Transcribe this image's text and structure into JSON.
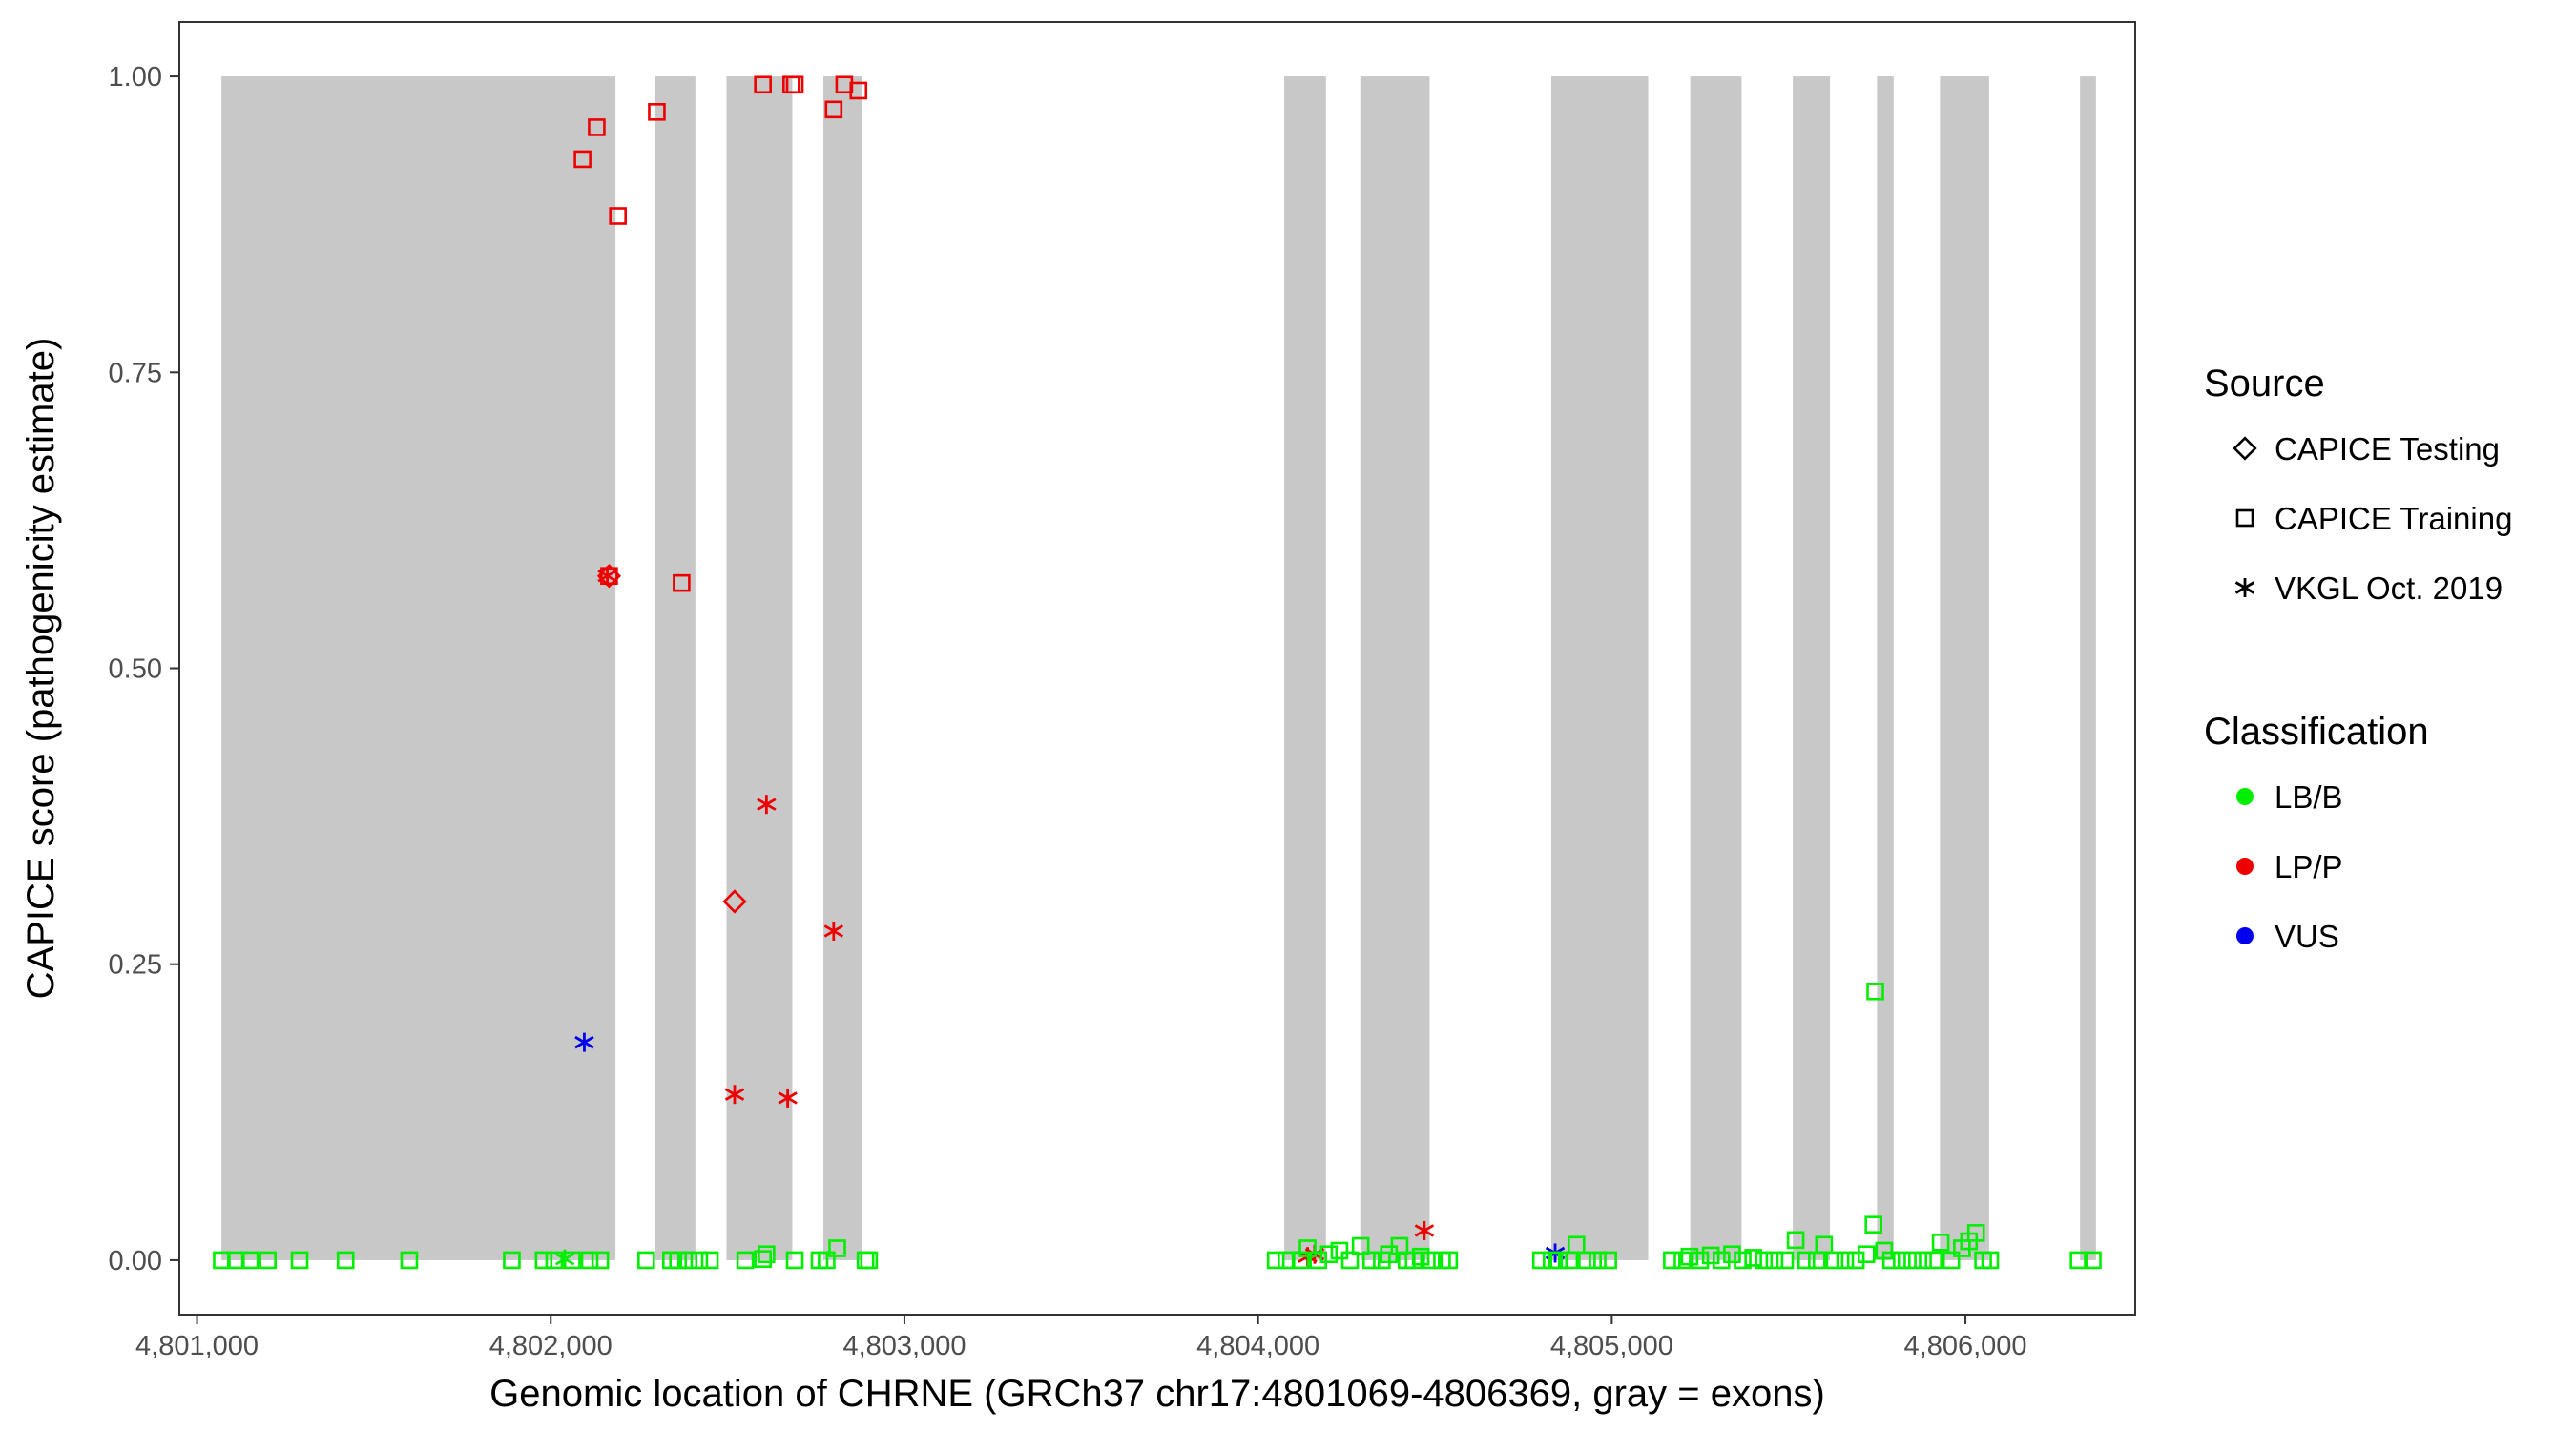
{
  "chart_data": {
    "type": "scatter",
    "title": "",
    "xlabel": "Genomic location of CHRNE (GRCh37 chr17:4801069-4806369, gray = exons)",
    "ylabel": "CAPICE score (pathogenicity estimate)",
    "xlim": [
      4800950,
      4806480
    ],
    "ylim": [
      -0.046,
      1.046
    ],
    "x_ticks": [
      4801000,
      4802000,
      4803000,
      4804000,
      4805000,
      4806000
    ],
    "x_tick_labels": [
      "4,801,000",
      "4,802,000",
      "4,803,000",
      "4,804,000",
      "4,805,000",
      "4,806,000"
    ],
    "y_ticks": [
      0,
      0.25,
      0.5,
      0.75,
      1
    ],
    "y_tick_labels": [
      "0.00",
      "0.25",
      "0.50",
      "0.75",
      "1.00"
    ],
    "grid": false,
    "exon_color": "#c8c8c8",
    "exons": [
      [
        4801069,
        4802183
      ],
      [
        4802296,
        4802409
      ],
      [
        4802497,
        4802683
      ],
      [
        4802771,
        4802881
      ],
      [
        4804074,
        4804192
      ],
      [
        4804289,
        4804485
      ],
      [
        4804829,
        4805103
      ],
      [
        4805222,
        4805367
      ],
      [
        4805512,
        4805617
      ],
      [
        4805750,
        4805797
      ],
      [
        4805928,
        4806067
      ],
      [
        4806324,
        4806369
      ]
    ],
    "legend": {
      "placement": "right",
      "source_title": "Source",
      "source_items": [
        {
          "label": "CAPICE Testing",
          "shape": "diamond"
        },
        {
          "label": "CAPICE Training",
          "shape": "square"
        },
        {
          "label": "VKGL Oct. 2019",
          "shape": "asterisk"
        }
      ],
      "class_title": "Classification",
      "class_items": [
        {
          "label": "LB/B",
          "color": "#00ee00"
        },
        {
          "label": "LP/P",
          "color": "#ee0000"
        },
        {
          "label": "VUS",
          "color": "#0000ee"
        }
      ]
    },
    "series": [
      {
        "source": "CAPICE Training",
        "class": "LP/P",
        "shape": "square",
        "color": "#ee0000",
        "points": [
          [
            4802090,
            0.93
          ],
          [
            4802130,
            0.957
          ],
          [
            4802300,
            0.97
          ],
          [
            4802190,
            0.882
          ],
          [
            4802600,
            0.993
          ],
          [
            4802680,
            0.993
          ],
          [
            4802690,
            0.993
          ],
          [
            4802800,
            0.972
          ],
          [
            4802830,
            0.993
          ],
          [
            4802870,
            0.988
          ],
          [
            4802165,
            0.578
          ],
          [
            4802370,
            0.572
          ]
        ]
      },
      {
        "source": "CAPICE Testing",
        "class": "LP/P",
        "shape": "diamond",
        "color": "#ee0000",
        "points": [
          [
            4802520,
            0.303
          ],
          [
            4802165,
            0.578
          ]
        ]
      },
      {
        "source": "VKGL Oct. 2019",
        "class": "LP/P",
        "shape": "asterisk",
        "color": "#ee0000",
        "points": [
          [
            4802160,
            0.578
          ],
          [
            4802610,
            0.385
          ],
          [
            4802800,
            0.278
          ],
          [
            4802520,
            0.14
          ],
          [
            4802670,
            0.137
          ],
          [
            4804140,
            0.003
          ],
          [
            4804160,
            0.005
          ],
          [
            4804470,
            0.025
          ]
        ]
      },
      {
        "source": "VKGL Oct. 2019",
        "class": "VUS",
        "shape": "asterisk",
        "color": "#0000ee",
        "points": [
          [
            4802095,
            0.184
          ],
          [
            4804840,
            0.006
          ]
        ]
      },
      {
        "source": "VKGL Oct. 2019",
        "class": "LB/B",
        "shape": "asterisk",
        "color": "#00ee00",
        "points": [
          [
            4802040,
            0.001
          ]
        ]
      },
      {
        "source": "CAPICE Training",
        "class": "LB/B",
        "shape": "square",
        "color": "#00ee00",
        "points": [
          [
            4801070,
            0
          ],
          [
            4801110,
            0
          ],
          [
            4801150,
            0
          ],
          [
            4801200,
            0
          ],
          [
            4801290,
            0
          ],
          [
            4801420,
            0
          ],
          [
            4801600,
            0
          ],
          [
            4801890,
            0
          ],
          [
            4801980,
            0
          ],
          [
            4802010,
            0
          ],
          [
            4802060,
            0
          ],
          [
            4802110,
            0
          ],
          [
            4802140,
            0
          ],
          [
            4802270,
            0
          ],
          [
            4802340,
            0
          ],
          [
            4802360,
            0
          ],
          [
            4802390,
            0
          ],
          [
            4802420,
            0
          ],
          [
            4802450,
            0
          ],
          [
            4802550,
            0
          ],
          [
            4802600,
            0.001
          ],
          [
            4802610,
            0.005
          ],
          [
            4802690,
            0
          ],
          [
            4802760,
            0
          ],
          [
            4802780,
            0
          ],
          [
            4802810,
            0.01
          ],
          [
            4802890,
            0
          ],
          [
            4802900,
            0
          ],
          [
            4804050,
            0
          ],
          [
            4804080,
            0
          ],
          [
            4804120,
            0
          ],
          [
            4804140,
            0.01
          ],
          [
            4804170,
            0
          ],
          [
            4804200,
            0.005
          ],
          [
            4804230,
            0.008
          ],
          [
            4804260,
            0
          ],
          [
            4804290,
            0.012
          ],
          [
            4804320,
            0
          ],
          [
            4804350,
            0
          ],
          [
            4804370,
            0.005
          ],
          [
            4804400,
            0.012
          ],
          [
            4804420,
            0
          ],
          [
            4804440,
            0
          ],
          [
            4804460,
            0.003
          ],
          [
            4804490,
            0
          ],
          [
            4804520,
            0
          ],
          [
            4804540,
            0
          ],
          [
            4804800,
            0
          ],
          [
            4804830,
            0
          ],
          [
            4804850,
            0
          ],
          [
            4804880,
            0
          ],
          [
            4804900,
            0.013
          ],
          [
            4804930,
            0
          ],
          [
            4804960,
            0
          ],
          [
            4804990,
            0
          ],
          [
            4805170,
            0
          ],
          [
            4805200,
            0
          ],
          [
            4805220,
            0.003
          ],
          [
            4805250,
            0
          ],
          [
            4805280,
            0.004
          ],
          [
            4805310,
            0
          ],
          [
            4805340,
            0.005
          ],
          [
            4805370,
            0
          ],
          [
            4805400,
            0.002
          ],
          [
            4805430,
            0
          ],
          [
            4805460,
            0
          ],
          [
            4805490,
            0
          ],
          [
            4805520,
            0.017
          ],
          [
            4805550,
            0
          ],
          [
            4805580,
            0
          ],
          [
            4805600,
            0.013
          ],
          [
            4805630,
            0
          ],
          [
            4805660,
            0
          ],
          [
            4805690,
            0
          ],
          [
            4805720,
            0.005
          ],
          [
            4805740,
            0.03
          ],
          [
            4805745,
            0.227
          ],
          [
            4805770,
            0.008
          ],
          [
            4805790,
            0
          ],
          [
            4805820,
            0
          ],
          [
            4805850,
            0
          ],
          [
            4805880,
            0
          ],
          [
            4805910,
            0
          ],
          [
            4805930,
            0.015
          ],
          [
            4805960,
            0
          ],
          [
            4805990,
            0.01
          ],
          [
            4806010,
            0.016
          ],
          [
            4806030,
            0.023
          ],
          [
            4806050,
            0
          ],
          [
            4806070,
            0
          ],
          [
            4806320,
            0
          ],
          [
            4806360,
            0
          ]
        ]
      }
    ]
  }
}
